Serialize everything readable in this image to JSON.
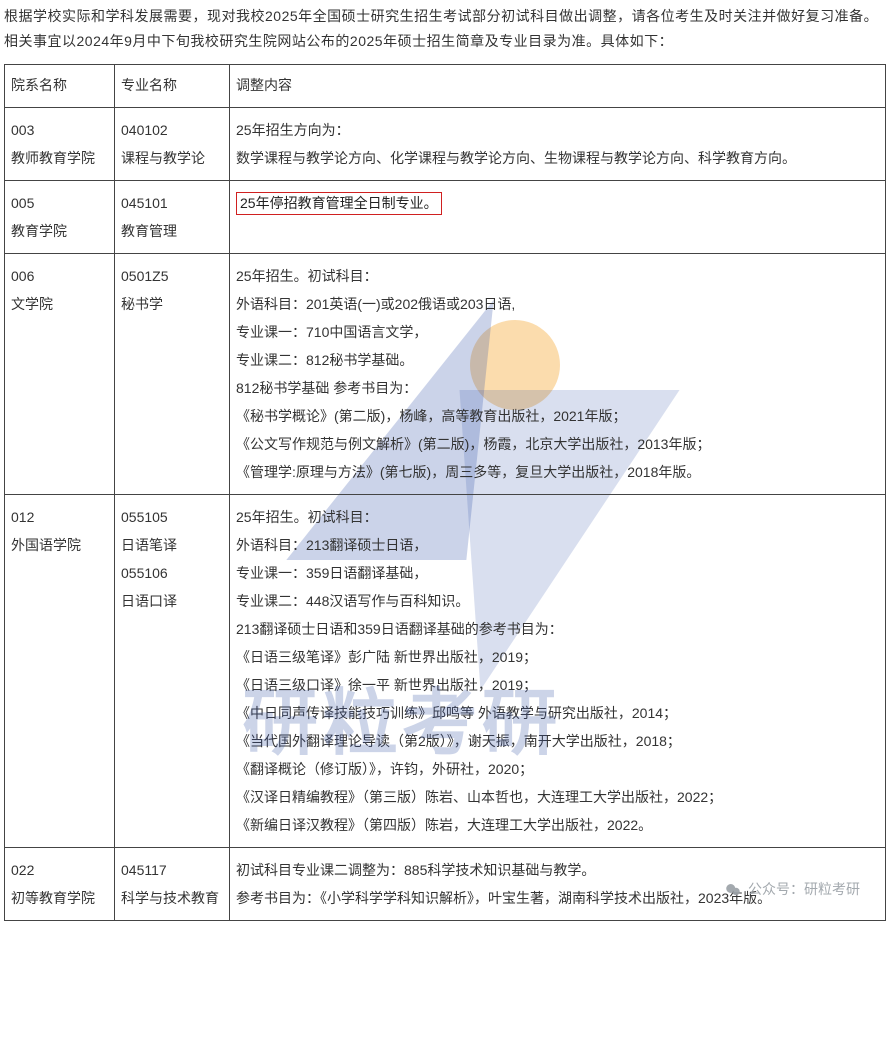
{
  "intro_text": "根据学校实际和学科发展需要，现对我校2025年全国硕士研究生招生考试部分初试科目做出调整，请各位考生及时关注并做好复习准备。相关事宜以2024年9月中下旬我校研究生院网站公布的2025年硕士招生简章及专业目录为准。具体如下：",
  "watermark_text": "研粒考研",
  "footer_label": "公众号：研粒考研",
  "table": {
    "headers": [
      "院系名称",
      "专业名称",
      "调整内容"
    ],
    "rows": [
      {
        "dept_lines": [
          "003",
          "教师教育学院"
        ],
        "major_lines": [
          "040102",
          "课程与教学论"
        ],
        "content_lines": [
          "25年招生方向为：",
          "数学课程与教学论方向、化学课程与教学论方向、生物课程与教学论方向、科学教育方向。"
        ],
        "highlight_first": false
      },
      {
        "dept_lines": [
          "005",
          "教育学院"
        ],
        "major_lines": [
          "045101",
          "教育管理"
        ],
        "content_lines": [
          "25年停招教育管理全日制专业。"
        ],
        "highlight_first": true
      },
      {
        "dept_lines": [
          "006",
          "文学院"
        ],
        "major_lines": [
          "0501Z5",
          "秘书学"
        ],
        "content_lines": [
          "25年招生。初试科目：",
          "外语科目：201英语(一)或202俄语或203日语,",
          "专业课一：710中国语言文学，",
          "专业课二：812秘书学基础。",
          "812秘书学基础 参考书目为：",
          "《秘书学概论》(第二版)，杨峰，高等教育出版社，2021年版；",
          "《公文写作规范与例文解析》(第二版)，杨霞，北京大学出版社，2013年版；",
          "《管理学:原理与方法》(第七版)，周三多等，复旦大学出版社，2018年版。"
        ],
        "highlight_first": false
      },
      {
        "dept_lines": [
          "012",
          "外国语学院"
        ],
        "major_lines": [
          "055105",
          "日语笔译",
          "055106",
          "日语口译"
        ],
        "content_lines": [
          "25年招生。初试科目：",
          "外语科目：213翻译硕士日语，",
          "专业课一：359日语翻译基础，",
          "专业课二：448汉语写作与百科知识。",
          "213翻译硕士日语和359日语翻译基础的参考书目为：",
          "《日语三级笔译》彭广陆 新世界出版社，2019；",
          "《日语三级口译》徐一平 新世界出版社，2019；",
          "《中日同声传译技能技巧训练》邱鸣等 外语教学与研究出版社，2014；",
          "《当代国外翻译理论导读（第2版）》，谢天振，南开大学出版社，2018；",
          "《翻译概论（修订版）》，许钧，外研社，2020；",
          "《汉译日精编教程》（第三版）陈岩、山本哲也，大连理工大学出版社，2022；",
          "《新编日译汉教程》（第四版）陈岩，大连理工大学出版社，2022。"
        ],
        "highlight_first": false
      },
      {
        "dept_lines": [
          "022",
          "初等教育学院"
        ],
        "major_lines": [
          "045117",
          "科学与技术教育"
        ],
        "content_lines": [
          "初试科目专业课二调整为：885科学技术知识基础与教学。",
          "参考书目为：《小学科学学科知识解析》，叶宝生著，湖南科学技术出版社，2023年版。"
        ],
        "highlight_first": false
      }
    ]
  },
  "colors": {
    "border": "#444444",
    "text": "#333333",
    "highlight_border": "#d02020",
    "watermark_blue": "#2e4ea8",
    "watermark_orange": "#f6b24a",
    "footer_grey": "#9aa0a6"
  }
}
